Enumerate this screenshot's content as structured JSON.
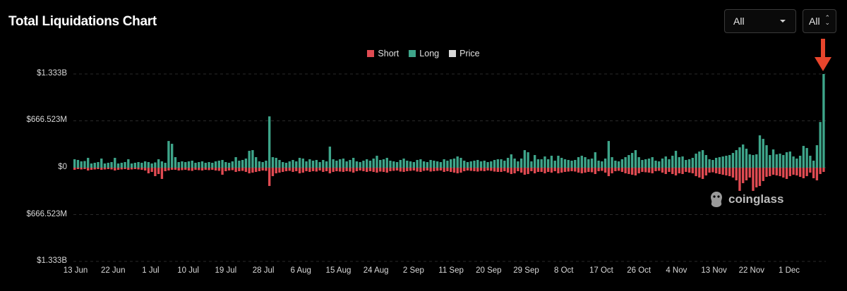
{
  "header": {
    "title": "Total Liquidations Chart",
    "filter_exchange": {
      "selected": "All"
    },
    "filter_range": {
      "selected": "All"
    }
  },
  "watermark": {
    "text": "coinglass"
  },
  "colors": {
    "short": "#e04b52",
    "long": "#3ea58a",
    "price": "#d9d9d9",
    "arrow": "#e8452c",
    "grid": "#2a2a2a"
  },
  "chart_data": {
    "type": "bar",
    "title": "Total Liquidations Chart",
    "legend": [
      "Short",
      "Long",
      "Price"
    ],
    "legend_position": "top-center",
    "y_axis": {
      "ticks": [
        "$1.333B",
        "$666.523M",
        "$0",
        "$666.523M",
        "$1.333B"
      ],
      "tick_values": [
        1333,
        666.523,
        0,
        -666.523,
        -1333
      ],
      "range": [
        -1333,
        1333
      ],
      "unit": "millions USD"
    },
    "x_axis": {
      "ticks": [
        "13 Jun",
        "22 Jun",
        "1 Jul",
        "10 Jul",
        "19 Jul",
        "28 Jul",
        "6 Aug",
        "15 Aug",
        "24 Aug",
        "2 Sep",
        "11 Sep",
        "20 Sep",
        "29 Sep",
        "8 Oct",
        "17 Oct",
        "26 Oct",
        "4 Nov",
        "13 Nov",
        "22 Nov",
        "1 Dec"
      ],
      "start_date": "13 Jun",
      "end_date": "6 Dec"
    },
    "grid": "horizontal-dashed",
    "series": [
      {
        "name": "Long",
        "values": [
          120,
          110,
          90,
          95,
          140,
          60,
          70,
          80,
          130,
          60,
          70,
          80,
          140,
          60,
          70,
          80,
          120,
          60,
          70,
          80,
          70,
          90,
          80,
          60,
          75,
          120,
          90,
          70,
          380,
          340,
          150,
          80,
          90,
          80,
          90,
          100,
          70,
          80,
          90,
          70,
          80,
          70,
          90,
          100,
          110,
          80,
          70,
          90,
          150,
          100,
          110,
          130,
          240,
          250,
          150,
          90,
          80,
          100,
          730,
          150,
          140,
          110,
          80,
          70,
          90,
          110,
          90,
          140,
          130,
          90,
          120,
          100,
          110,
          80,
          110,
          90,
          300,
          120,
          100,
          120,
          130,
          90,
          110,
          140,
          90,
          80,
          100,
          120,
          100,
          130,
          170,
          110,
          120,
          140,
          100,
          90,
          80,
          110,
          130,
          100,
          90,
          80,
          110,
          120,
          90,
          80,
          110,
          100,
          90,
          80,
          120,
          100,
          120,
          130,
          160,
          140,
          100,
          80,
          90,
          100,
          110,
          90,
          100,
          80,
          90,
          110,
          120,
          120,
          100,
          140,
          190,
          130,
          90,
          130,
          250,
          220,
          90,
          180,
          120,
          120,
          160,
          120,
          170,
          100,
          170,
          140,
          120,
          110,
          100,
          110,
          150,
          170,
          150,
          120,
          130,
          220,
          100,
          90,
          130,
          380,
          150,
          100,
          90,
          120,
          150,
          180,
          210,
          250,
          150,
          110,
          120,
          130,
          150,
          100,
          90,
          130,
          160,
          120,
          170,
          240,
          150,
          160,
          110,
          120,
          140,
          200,
          230,
          250,
          180,
          120,
          110,
          140,
          150,
          160,
          170,
          180,
          210,
          250,
          290,
          330,
          270,
          190,
          180,
          190,
          460,
          410,
          320,
          180,
          260,
          190,
          200,
          180,
          220,
          230,
          160,
          130,
          170,
          310,
          280,
          170,
          100,
          320,
          650,
          1333
        ],
        "values_unit": "millions USD"
      },
      {
        "name": "Short",
        "values": [
          30,
          20,
          25,
          20,
          40,
          30,
          25,
          20,
          30,
          25,
          20,
          25,
          40,
          30,
          25,
          20,
          30,
          25,
          20,
          25,
          30,
          40,
          80,
          60,
          120,
          90,
          160,
          50,
          40,
          30,
          30,
          40,
          35,
          30,
          40,
          45,
          30,
          35,
          40,
          30,
          35,
          30,
          40,
          45,
          100,
          50,
          40,
          35,
          60,
          50,
          45,
          60,
          80,
          70,
          60,
          50,
          40,
          45,
          260,
          120,
          80,
          70,
          60,
          50,
          45,
          60,
          50,
          80,
          70,
          50,
          60,
          50,
          55,
          40,
          60,
          50,
          80,
          60,
          50,
          55,
          60,
          50,
          55,
          70,
          50,
          40,
          50,
          60,
          50,
          60,
          70,
          55,
          60,
          70,
          50,
          45,
          40,
          55,
          60,
          50,
          45,
          40,
          55,
          60,
          45,
          40,
          55,
          50,
          45,
          40,
          60,
          50,
          60,
          70,
          80,
          70,
          50,
          40,
          45,
          50,
          55,
          45,
          50,
          40,
          45,
          55,
          60,
          60,
          50,
          70,
          90,
          80,
          50,
          70,
          100,
          90,
          50,
          80,
          60,
          60,
          80,
          60,
          70,
          50,
          80,
          70,
          60,
          55,
          50,
          55,
          70,
          80,
          70,
          60,
          65,
          90,
          50,
          45,
          70,
          120,
          80,
          50,
          45,
          60,
          80,
          90,
          100,
          110,
          80,
          60,
          65,
          70,
          80,
          50,
          45,
          70,
          90,
          60,
          90,
          110,
          80,
          90,
          60,
          70,
          80,
          120,
          140,
          160,
          110,
          70,
          65,
          80,
          90,
          100,
          110,
          120,
          140,
          180,
          330,
          220,
          180,
          140,
          330,
          280,
          260,
          190,
          130,
          120,
          100,
          110,
          120,
          140,
          160,
          120,
          100,
          110,
          130,
          150,
          120,
          70,
          150,
          180,
          90,
          60
        ],
        "values_unit": "millions USD"
      }
    ],
    "annotations": [
      {
        "type": "arrow",
        "points_to": "last Long bar"
      }
    ]
  }
}
